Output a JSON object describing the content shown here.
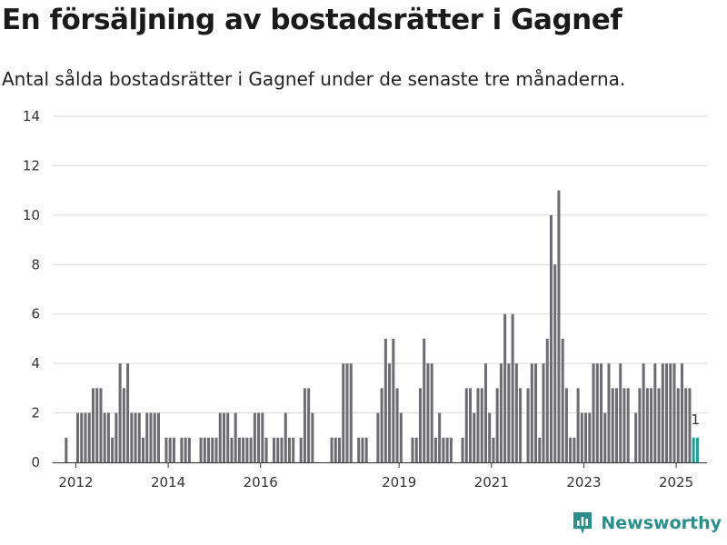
{
  "title": "En försäljning av bostadsrätter i Gagnef",
  "subtitle": "Antal sålda bostadsrätter i Gagnef under de senaste tre månaderna.",
  "brand": {
    "label": "Newsworthy",
    "icon": "newsworthy-logo-icon"
  },
  "colors": {
    "bar": "#6d6c72",
    "highlight": "#1f9b98",
    "grid": "#d9d9d9",
    "axis": "#333333"
  },
  "chart_data": {
    "type": "bar",
    "title": "",
    "xlabel": "",
    "ylabel": "",
    "ylim": [
      0,
      14
    ],
    "yticks": [
      0,
      2,
      4,
      6,
      8,
      10,
      12,
      14
    ],
    "xticks": [
      "2012",
      "2014",
      "2016",
      "2019",
      "2021",
      "2023",
      "2025"
    ],
    "grid": true,
    "x_range": [
      "2011-07",
      "2025-08"
    ],
    "highlight_label": "1",
    "series": [
      {
        "name": "",
        "points": [
          {
            "x": "2011-10",
            "y": 1
          },
          {
            "x": "2012-01",
            "y": 2
          },
          {
            "x": "2012-02",
            "y": 2
          },
          {
            "x": "2012-03",
            "y": 2
          },
          {
            "x": "2012-04",
            "y": 2
          },
          {
            "x": "2012-05",
            "y": 3
          },
          {
            "x": "2012-06",
            "y": 3
          },
          {
            "x": "2012-07",
            "y": 3
          },
          {
            "x": "2012-08",
            "y": 2
          },
          {
            "x": "2012-09",
            "y": 2
          },
          {
            "x": "2012-10",
            "y": 1
          },
          {
            "x": "2012-11",
            "y": 2
          },
          {
            "x": "2012-12",
            "y": 4
          },
          {
            "x": "2013-01",
            "y": 3
          },
          {
            "x": "2013-02",
            "y": 4
          },
          {
            "x": "2013-03",
            "y": 2
          },
          {
            "x": "2013-04",
            "y": 2
          },
          {
            "x": "2013-05",
            "y": 2
          },
          {
            "x": "2013-06",
            "y": 1
          },
          {
            "x": "2013-07",
            "y": 2
          },
          {
            "x": "2013-08",
            "y": 2
          },
          {
            "x": "2013-09",
            "y": 2
          },
          {
            "x": "2013-10",
            "y": 2
          },
          {
            "x": "2013-12",
            "y": 1
          },
          {
            "x": "2014-01",
            "y": 1
          },
          {
            "x": "2014-02",
            "y": 1
          },
          {
            "x": "2014-04",
            "y": 1
          },
          {
            "x": "2014-05",
            "y": 1
          },
          {
            "x": "2014-06",
            "y": 1
          },
          {
            "x": "2014-09",
            "y": 1
          },
          {
            "x": "2014-10",
            "y": 1
          },
          {
            "x": "2014-11",
            "y": 1
          },
          {
            "x": "2014-12",
            "y": 1
          },
          {
            "x": "2015-01",
            "y": 1
          },
          {
            "x": "2015-02",
            "y": 2
          },
          {
            "x": "2015-03",
            "y": 2
          },
          {
            "x": "2015-04",
            "y": 2
          },
          {
            "x": "2015-05",
            "y": 1
          },
          {
            "x": "2015-06",
            "y": 2
          },
          {
            "x": "2015-07",
            "y": 1
          },
          {
            "x": "2015-08",
            "y": 1
          },
          {
            "x": "2015-09",
            "y": 1
          },
          {
            "x": "2015-10",
            "y": 1
          },
          {
            "x": "2015-11",
            "y": 2
          },
          {
            "x": "2015-12",
            "y": 2
          },
          {
            "x": "2016-01",
            "y": 2
          },
          {
            "x": "2016-02",
            "y": 1
          },
          {
            "x": "2016-04",
            "y": 1
          },
          {
            "x": "2016-05",
            "y": 1
          },
          {
            "x": "2016-06",
            "y": 1
          },
          {
            "x": "2016-07",
            "y": 2
          },
          {
            "x": "2016-08",
            "y": 1
          },
          {
            "x": "2016-09",
            "y": 1
          },
          {
            "x": "2016-11",
            "y": 1
          },
          {
            "x": "2016-12",
            "y": 3
          },
          {
            "x": "2017-01",
            "y": 3
          },
          {
            "x": "2017-02",
            "y": 2
          },
          {
            "x": "2017-07",
            "y": 1
          },
          {
            "x": "2017-08",
            "y": 1
          },
          {
            "x": "2017-09",
            "y": 1
          },
          {
            "x": "2017-10",
            "y": 4
          },
          {
            "x": "2017-11",
            "y": 4
          },
          {
            "x": "2017-12",
            "y": 4
          },
          {
            "x": "2018-02",
            "y": 1
          },
          {
            "x": "2018-03",
            "y": 1
          },
          {
            "x": "2018-04",
            "y": 1
          },
          {
            "x": "2018-07",
            "y": 2
          },
          {
            "x": "2018-08",
            "y": 3
          },
          {
            "x": "2018-09",
            "y": 5
          },
          {
            "x": "2018-10",
            "y": 4
          },
          {
            "x": "2018-11",
            "y": 5
          },
          {
            "x": "2018-12",
            "y": 3
          },
          {
            "x": "2019-01",
            "y": 2
          },
          {
            "x": "2019-04",
            "y": 1
          },
          {
            "x": "2019-05",
            "y": 1
          },
          {
            "x": "2019-06",
            "y": 3
          },
          {
            "x": "2019-07",
            "y": 5
          },
          {
            "x": "2019-08",
            "y": 4
          },
          {
            "x": "2019-09",
            "y": 4
          },
          {
            "x": "2019-10",
            "y": 1
          },
          {
            "x": "2019-11",
            "y": 2
          },
          {
            "x": "2019-12",
            "y": 1
          },
          {
            "x": "2020-01",
            "y": 1
          },
          {
            "x": "2020-02",
            "y": 1
          },
          {
            "x": "2020-05",
            "y": 1
          },
          {
            "x": "2020-06",
            "y": 3
          },
          {
            "x": "2020-07",
            "y": 3
          },
          {
            "x": "2020-08",
            "y": 2
          },
          {
            "x": "2020-09",
            "y": 3
          },
          {
            "x": "2020-10",
            "y": 3
          },
          {
            "x": "2020-11",
            "y": 4
          },
          {
            "x": "2020-12",
            "y": 2
          },
          {
            "x": "2021-01",
            "y": 1
          },
          {
            "x": "2021-02",
            "y": 3
          },
          {
            "x": "2021-03",
            "y": 4
          },
          {
            "x": "2021-04",
            "y": 6
          },
          {
            "x": "2021-05",
            "y": 4
          },
          {
            "x": "2021-06",
            "y": 6
          },
          {
            "x": "2021-07",
            "y": 4
          },
          {
            "x": "2021-08",
            "y": 3
          },
          {
            "x": "2021-10",
            "y": 3
          },
          {
            "x": "2021-11",
            "y": 4
          },
          {
            "x": "2021-12",
            "y": 4
          },
          {
            "x": "2022-01",
            "y": 1
          },
          {
            "x": "2022-02",
            "y": 4
          },
          {
            "x": "2022-03",
            "y": 5
          },
          {
            "x": "2022-04",
            "y": 10
          },
          {
            "x": "2022-05",
            "y": 8
          },
          {
            "x": "2022-06",
            "y": 11
          },
          {
            "x": "2022-07",
            "y": 5
          },
          {
            "x": "2022-08",
            "y": 3
          },
          {
            "x": "2022-09",
            "y": 1
          },
          {
            "x": "2022-10",
            "y": 1
          },
          {
            "x": "2022-11",
            "y": 3
          },
          {
            "x": "2022-12",
            "y": 2
          },
          {
            "x": "2023-01",
            "y": 2
          },
          {
            "x": "2023-02",
            "y": 2
          },
          {
            "x": "2023-03",
            "y": 4
          },
          {
            "x": "2023-04",
            "y": 4
          },
          {
            "x": "2023-05",
            "y": 4
          },
          {
            "x": "2023-06",
            "y": 2
          },
          {
            "x": "2023-07",
            "y": 4
          },
          {
            "x": "2023-08",
            "y": 3
          },
          {
            "x": "2023-09",
            "y": 3
          },
          {
            "x": "2023-10",
            "y": 4
          },
          {
            "x": "2023-11",
            "y": 3
          },
          {
            "x": "2023-12",
            "y": 3
          },
          {
            "x": "2024-02",
            "y": 2
          },
          {
            "x": "2024-03",
            "y": 3
          },
          {
            "x": "2024-04",
            "y": 4
          },
          {
            "x": "2024-05",
            "y": 3
          },
          {
            "x": "2024-06",
            "y": 3
          },
          {
            "x": "2024-07",
            "y": 4
          },
          {
            "x": "2024-08",
            "y": 3
          },
          {
            "x": "2024-09",
            "y": 4
          },
          {
            "x": "2024-10",
            "y": 4
          },
          {
            "x": "2024-11",
            "y": 4
          },
          {
            "x": "2024-12",
            "y": 4
          },
          {
            "x": "2025-01",
            "y": 3
          },
          {
            "x": "2025-02",
            "y": 4
          },
          {
            "x": "2025-03",
            "y": 3
          },
          {
            "x": "2025-04",
            "y": 3
          },
          {
            "x": "2025-05",
            "y": 1,
            "highlight": true
          },
          {
            "x": "2025-06",
            "y": 1,
            "highlight": true
          }
        ]
      }
    ]
  }
}
